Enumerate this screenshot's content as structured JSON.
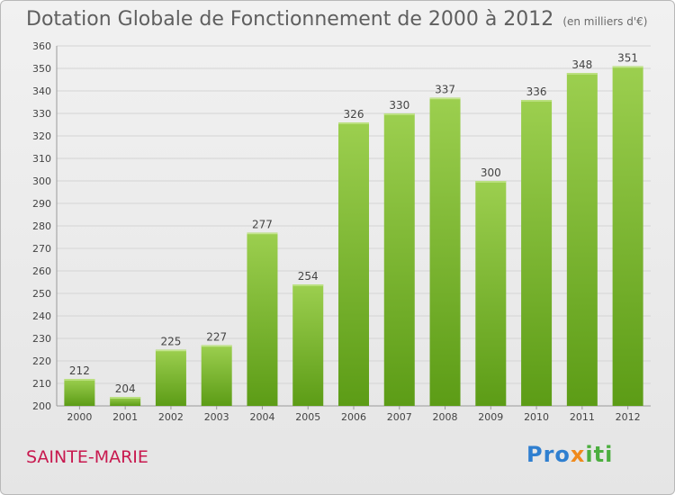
{
  "header": {
    "title": "Dotation Globale de Fonctionnement de 2000 à 2012",
    "unit_note": "(en milliers d'€)"
  },
  "footer": {
    "location": "SAINTE-MARIE",
    "brand": {
      "p1": "Pro",
      "p2": "x",
      "p3": "iti"
    }
  },
  "colors": {
    "bar_top": "#9ccf4f",
    "bar_bottom": "#5c9c16",
    "grid": "#d4d4d4",
    "axis_text": "#444444",
    "location": "#c8194f"
  },
  "chart_data": {
    "type": "bar",
    "title": "Dotation Globale de Fonctionnement de 2000 à 2012",
    "subtitle": "(en milliers d'€)",
    "categories": [
      "2000",
      "2001",
      "2002",
      "2003",
      "2004",
      "2005",
      "2006",
      "2007",
      "2008",
      "2009",
      "2010",
      "2011",
      "2012"
    ],
    "values": [
      212,
      204,
      225,
      227,
      277,
      254,
      326,
      330,
      337,
      300,
      336,
      348,
      351
    ],
    "ylim": [
      200,
      360
    ],
    "yticks": [
      200,
      210,
      220,
      230,
      240,
      250,
      260,
      270,
      280,
      290,
      300,
      310,
      320,
      330,
      340,
      350,
      360
    ],
    "grid": true,
    "data_labels": true
  }
}
